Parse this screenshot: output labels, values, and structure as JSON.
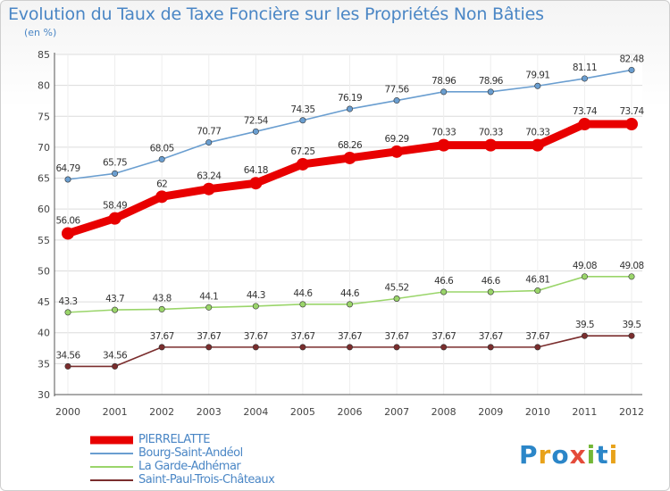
{
  "header": {
    "title": "Evolution du Taux de Taxe Foncière sur les Propriétés Non Bâties",
    "unit": "(en %)"
  },
  "logo": {
    "text": "Proxiti"
  },
  "chart_data": {
    "type": "line",
    "title": "Evolution du Taux de Taxe Foncière sur les Propriétés Non Bâties",
    "ylabel": "(en %)",
    "xlabel": "",
    "x": [
      "2000",
      "2001",
      "2002",
      "2003",
      "2004",
      "2005",
      "2006",
      "2007",
      "2008",
      "2009",
      "2010",
      "2011",
      "2012"
    ],
    "ylim": [
      30,
      85
    ],
    "yticks": [
      30,
      35,
      40,
      45,
      50,
      55,
      60,
      65,
      70,
      75,
      80,
      85
    ],
    "grid": true,
    "legend_position": "bottom-left",
    "series": [
      {
        "name": "PIERRELATTE",
        "color": "#e80000",
        "emphasis": true,
        "values": [
          56.06,
          58.49,
          62,
          63.24,
          64.18,
          67.25,
          68.26,
          69.29,
          70.33,
          70.33,
          70.33,
          73.74,
          73.74
        ],
        "labels": [
          "56.06",
          "58.49",
          "62",
          "63.24",
          "64.18",
          "67.25",
          "68.26",
          "69.29",
          "70.33",
          "70.33",
          "70.33",
          "73.74",
          "73.74"
        ]
      },
      {
        "name": "Bourg-Saint-Andéol",
        "color": "#6a9ed0",
        "emphasis": false,
        "values": [
          64.79,
          65.75,
          68.05,
          70.77,
          72.54,
          74.35,
          76.19,
          77.56,
          78.96,
          78.96,
          79.91,
          81.11,
          82.48
        ],
        "labels": [
          "64.79",
          "65.75",
          "68.05",
          "70.77",
          "72.54",
          "74.35",
          "76.19",
          "77.56",
          "78.96",
          "78.96",
          "79.91",
          "81.11",
          "82.48"
        ]
      },
      {
        "name": "La Garde-Adhémar",
        "color": "#9ad56a",
        "emphasis": false,
        "values": [
          43.3,
          43.7,
          43.8,
          44.1,
          44.3,
          44.6,
          44.6,
          45.52,
          46.6,
          46.6,
          46.81,
          49.08,
          49.08
        ],
        "labels": [
          "43.3",
          "43.7",
          "43.8",
          "44.1",
          "44.3",
          "44.6",
          "44.6",
          "45.52",
          "46.6",
          "46.6",
          "46.81",
          "49.08",
          "49.08"
        ]
      },
      {
        "name": "Saint-Paul-Trois-Châteaux",
        "color": "#7a2d2d",
        "emphasis": false,
        "values": [
          34.56,
          34.56,
          37.67,
          37.67,
          37.67,
          37.67,
          37.67,
          37.67,
          37.67,
          37.67,
          37.67,
          39.5,
          39.5
        ],
        "labels": [
          "34.56",
          "34.56",
          "37.67",
          "37.67",
          "37.67",
          "37.67",
          "37.67",
          "37.67",
          "37.67",
          "37.67",
          "37.67",
          "39.5",
          "39.5"
        ]
      }
    ]
  }
}
